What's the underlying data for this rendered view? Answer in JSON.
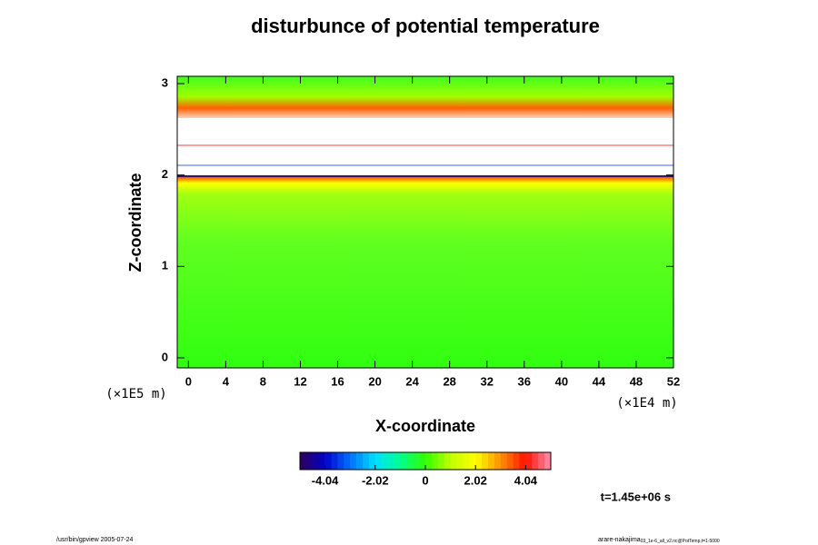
{
  "chart_data": {
    "type": "heatmap",
    "title": "disturbunce of potential temperature",
    "x_label": "X-coordinate",
    "y_label": "Z-coordinate",
    "x_unit": "(×1E4 m)",
    "y_unit": "(×1E5 m)",
    "xlim": [
      -1.2,
      52
    ],
    "xticks": [
      0,
      4,
      8,
      12,
      16,
      20,
      24,
      28,
      32,
      36,
      40,
      44,
      48,
      52
    ],
    "ylim": [
      -0.11,
      3.08
    ],
    "yticks": [
      0,
      1,
      2,
      3
    ],
    "clim": [
      -5.05,
      5.05
    ],
    "cticks": [
      -4.04,
      -2.02,
      0,
      2.02,
      4.04
    ],
    "colormap": [
      "#30005a",
      "#0000c8",
      "#0070ff",
      "#00e0ff",
      "#00ff90",
      "#30ff00",
      "#c0ff00",
      "#ffff00",
      "#ff9000",
      "#ff1000",
      "#ff90b0"
    ],
    "time_label": "t=1.45e+06 s",
    "footer_left": "/usr/bin/gpview 2005-07-24",
    "footer_right": "arare-nakajima",
    "footer_right_sub": "03_1e-6_all_v2.nc@PotTemp,t=1-5000"
  }
}
